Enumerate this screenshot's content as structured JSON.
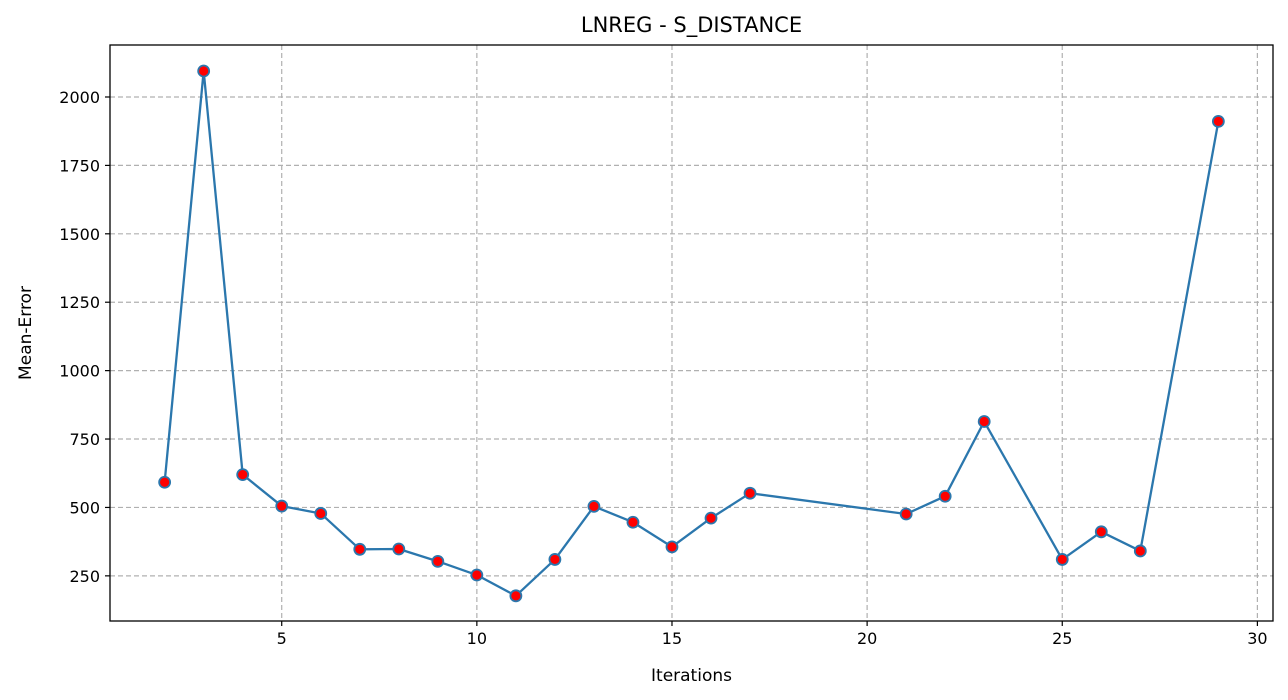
{
  "chart_data": {
    "type": "line",
    "title": "LNREG - S_DISTANCE",
    "xlabel": "Iterations",
    "ylabel": "Mean-Error",
    "xlim": [
      0.6,
      30.4
    ],
    "ylim": [
      85,
      2190
    ],
    "xticks": [
      5,
      10,
      15,
      20,
      25,
      30
    ],
    "yticks": [
      250,
      500,
      750,
      1000,
      1250,
      1500,
      1750,
      2000
    ],
    "grid": true,
    "line_color": "#2b77ad",
    "marker_face_color": "#ff0000",
    "marker_edge_color": "#2b77ad",
    "series": [
      {
        "x": [
          2,
          3,
          4,
          5,
          6,
          7,
          8,
          9,
          10,
          11,
          12,
          13,
          14,
          15,
          16,
          17,
          21,
          22,
          23,
          25,
          26,
          27,
          29
        ],
        "y": [
          592,
          2095,
          620,
          505,
          478,
          347,
          348,
          303,
          253,
          177,
          310,
          504,
          446,
          356,
          461,
          552,
          476,
          541,
          814,
          310,
          411,
          341,
          1911
        ]
      }
    ]
  }
}
